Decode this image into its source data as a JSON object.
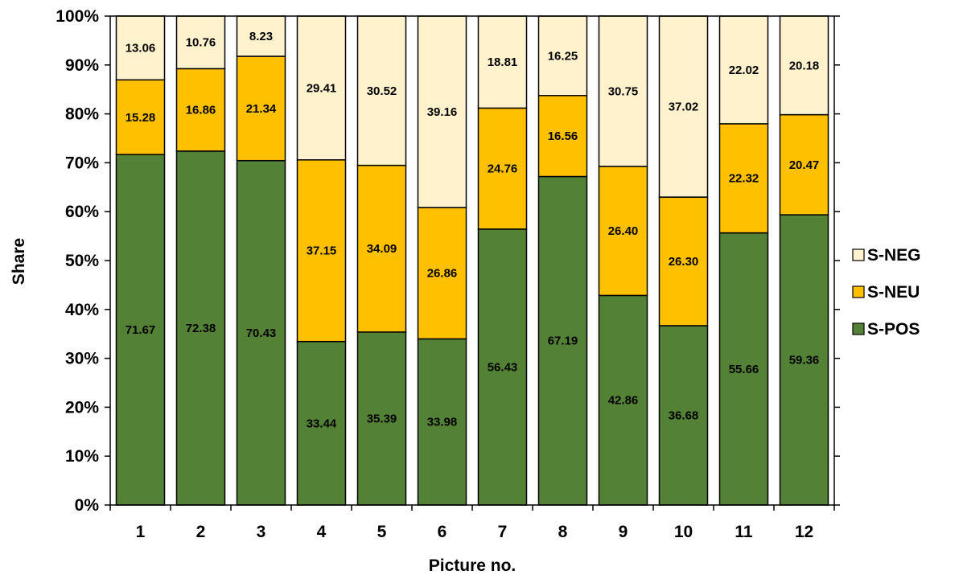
{
  "chart_data": {
    "type": "bar",
    "stacked": true,
    "xlabel": "Picture no.",
    "ylabel": "Share",
    "ylim": [
      0,
      100
    ],
    "yticks": [
      "0%",
      "10%",
      "20%",
      "30%",
      "40%",
      "50%",
      "60%",
      "70%",
      "80%",
      "90%",
      "100%"
    ],
    "categories": [
      "1",
      "2",
      "3",
      "4",
      "5",
      "6",
      "7",
      "8",
      "9",
      "10",
      "11",
      "12"
    ],
    "grid": false,
    "legend_position": "right",
    "series": [
      {
        "name": "S-POS",
        "color": "#538135",
        "values": [
          71.67,
          72.38,
          70.43,
          33.44,
          35.39,
          33.98,
          56.43,
          67.19,
          42.86,
          36.68,
          55.66,
          59.36
        ],
        "labels": [
          "71.67",
          "72.38",
          "70.43",
          "33.44",
          "35.39",
          "33.98",
          "56.43",
          "67.19",
          "42.86",
          "36.68",
          "55.66",
          "59.36"
        ]
      },
      {
        "name": "S-NEU",
        "color": "#FFC000",
        "values": [
          15.28,
          16.86,
          21.34,
          37.15,
          34.09,
          26.86,
          24.76,
          16.56,
          26.4,
          26.3,
          22.32,
          20.47
        ],
        "labels": [
          "15.28",
          "16.86",
          "21.34",
          "37.15",
          "34.09",
          "26.86",
          "24.76",
          "16.56",
          "26.40",
          "26.30",
          "22.32",
          "20.47"
        ]
      },
      {
        "name": "S-NEG",
        "color": "#FFF2CC",
        "values": [
          13.06,
          10.76,
          8.23,
          29.41,
          30.52,
          39.16,
          18.81,
          16.25,
          30.75,
          37.02,
          22.02,
          20.18
        ],
        "labels": [
          "13.06",
          "10.76",
          "8.23",
          "29.41",
          "30.52",
          "39.16",
          "18.81",
          "16.25",
          "30.75",
          "37.02",
          "22.02",
          "20.18"
        ]
      }
    ],
    "legend_order": [
      "S-NEG",
      "S-NEU",
      "S-POS"
    ]
  }
}
